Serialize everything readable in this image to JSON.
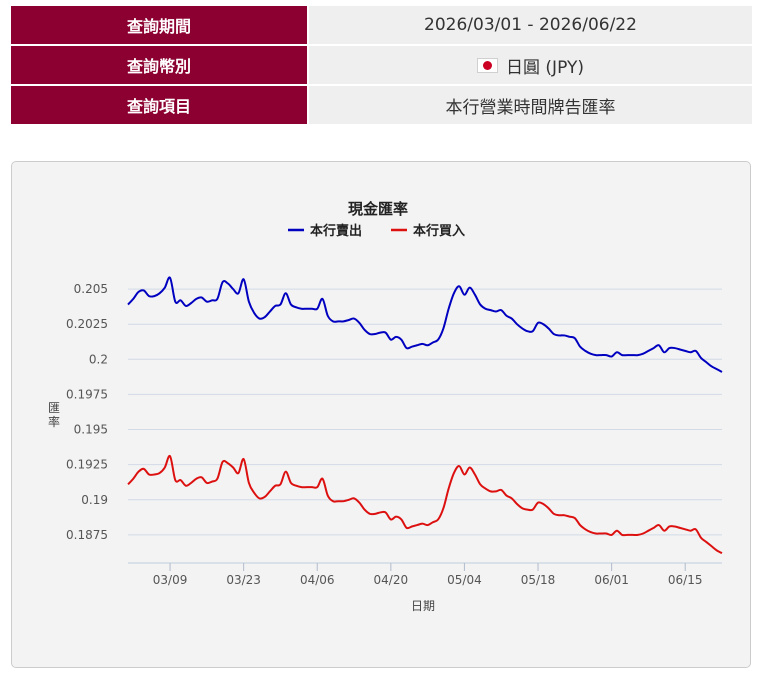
{
  "query": {
    "rows": [
      {
        "label": "查詢期間",
        "value": "2026/03/01 - 2026/06/22"
      },
      {
        "label": "查詢幣別",
        "value": "日圓 (JPY)",
        "icon": "japan-flag-icon"
      },
      {
        "label": "查詢項目",
        "value": "本行營業時間牌告匯率"
      }
    ]
  },
  "colors": {
    "header": "#8b0030",
    "sell": "#0000c0",
    "buy": "#dd1010"
  },
  "chart_data": {
    "type": "line",
    "title": "現金匯率",
    "xlabel": "日期",
    "ylabel": "匯率",
    "legend_position": "top-center",
    "ylim": [
      0.1855,
      0.2065
    ],
    "xlim": [
      "2026-03-01",
      "2026-06-22"
    ],
    "y_ticks": [
      0.1875,
      0.19,
      0.1925,
      0.195,
      0.1975,
      0.2,
      0.2025,
      0.205
    ],
    "y_tick_labels": [
      "0.1875",
      "0.19",
      "0.1925",
      "0.195",
      "0.1975",
      "0.2",
      "0.2025",
      "0.205"
    ],
    "x_ticks": [
      "2026-03-09",
      "2026-03-23",
      "2026-04-06",
      "2026-04-20",
      "2026-05-04",
      "2026-05-18",
      "2026-06-01",
      "2026-06-15"
    ],
    "x_tick_labels": [
      "03/09",
      "03/23",
      "04/06",
      "04/20",
      "05/04",
      "05/18",
      "06/01",
      "06/15"
    ],
    "grid": true,
    "series": [
      {
        "name": "本行賣出",
        "color": "#0000c0",
        "points": [
          [
            "2026-03-01",
            0.2039
          ],
          [
            "2026-03-02",
            0.2043
          ],
          [
            "2026-03-03",
            0.2048
          ],
          [
            "2026-03-04",
            0.2049
          ],
          [
            "2026-03-05",
            0.2045
          ],
          [
            "2026-03-06",
            0.2045
          ],
          [
            "2026-03-07",
            0.2047
          ],
          [
            "2026-03-08",
            0.2051
          ],
          [
            "2026-03-09",
            0.2058
          ],
          [
            "2026-03-10",
            0.2041
          ],
          [
            "2026-03-11",
            0.2042
          ],
          [
            "2026-03-12",
            0.2038
          ],
          [
            "2026-03-13",
            0.204
          ],
          [
            "2026-03-14",
            0.2043
          ],
          [
            "2026-03-15",
            0.2044
          ],
          [
            "2026-03-16",
            0.2041
          ],
          [
            "2026-03-17",
            0.2042
          ],
          [
            "2026-03-18",
            0.2043
          ],
          [
            "2026-03-19",
            0.2055
          ],
          [
            "2026-03-20",
            0.2054
          ],
          [
            "2026-03-21",
            0.205
          ],
          [
            "2026-03-22",
            0.2047
          ],
          [
            "2026-03-23",
            0.2057
          ],
          [
            "2026-03-24",
            0.2041
          ],
          [
            "2026-03-25",
            0.2033
          ],
          [
            "2026-03-26",
            0.2029
          ],
          [
            "2026-03-27",
            0.203
          ],
          [
            "2026-03-28",
            0.2034
          ],
          [
            "2026-03-29",
            0.2038
          ],
          [
            "2026-03-30",
            0.2039
          ],
          [
            "2026-03-31",
            0.2047
          ],
          [
            "2026-04-01",
            0.2039
          ],
          [
            "2026-04-02",
            0.2037
          ],
          [
            "2026-04-03",
            0.2036
          ],
          [
            "2026-04-04",
            0.2036
          ],
          [
            "2026-04-05",
            0.2036
          ],
          [
            "2026-04-06",
            0.2036
          ],
          [
            "2026-04-07",
            0.2043
          ],
          [
            "2026-04-08",
            0.2031
          ],
          [
            "2026-04-09",
            0.2027
          ],
          [
            "2026-04-10",
            0.2027
          ],
          [
            "2026-04-11",
            0.2027
          ],
          [
            "2026-04-12",
            0.2028
          ],
          [
            "2026-04-13",
            0.2029
          ],
          [
            "2026-04-14",
            0.2026
          ],
          [
            "2026-04-15",
            0.2021
          ],
          [
            "2026-04-16",
            0.2018
          ],
          [
            "2026-04-17",
            0.2018
          ],
          [
            "2026-04-18",
            0.2019
          ],
          [
            "2026-04-19",
            0.2019
          ],
          [
            "2026-04-20",
            0.2014
          ],
          [
            "2026-04-21",
            0.2016
          ],
          [
            "2026-04-22",
            0.2014
          ],
          [
            "2026-04-23",
            0.2008
          ],
          [
            "2026-04-24",
            0.2009
          ],
          [
            "2026-04-25",
            0.201
          ],
          [
            "2026-04-26",
            0.2011
          ],
          [
            "2026-04-27",
            0.201
          ],
          [
            "2026-04-28",
            0.2012
          ],
          [
            "2026-04-29",
            0.2014
          ],
          [
            "2026-04-30",
            0.2022
          ],
          [
            "2026-05-01",
            0.2036
          ],
          [
            "2026-05-02",
            0.2047
          ],
          [
            "2026-05-03",
            0.2052
          ],
          [
            "2026-05-04",
            0.2046
          ],
          [
            "2026-05-05",
            0.2051
          ],
          [
            "2026-05-06",
            0.2046
          ],
          [
            "2026-05-07",
            0.2039
          ],
          [
            "2026-05-08",
            0.2036
          ],
          [
            "2026-05-09",
            0.2035
          ],
          [
            "2026-05-10",
            0.2034
          ],
          [
            "2026-05-11",
            0.2035
          ],
          [
            "2026-05-12",
            0.2031
          ],
          [
            "2026-05-13",
            0.2029
          ],
          [
            "2026-05-14",
            0.2025
          ],
          [
            "2026-05-15",
            0.2022
          ],
          [
            "2026-05-16",
            0.202
          ],
          [
            "2026-05-17",
            0.202
          ],
          [
            "2026-05-18",
            0.2026
          ],
          [
            "2026-05-19",
            0.2025
          ],
          [
            "2026-05-20",
            0.2022
          ],
          [
            "2026-05-21",
            0.2018
          ],
          [
            "2026-05-22",
            0.2017
          ],
          [
            "2026-05-23",
            0.2017
          ],
          [
            "2026-05-24",
            0.2016
          ],
          [
            "2026-05-25",
            0.2015
          ],
          [
            "2026-05-26",
            0.2009
          ],
          [
            "2026-05-27",
            0.2006
          ],
          [
            "2026-05-28",
            0.2004
          ],
          [
            "2026-05-29",
            0.2003
          ],
          [
            "2026-05-30",
            0.2003
          ],
          [
            "2026-05-31",
            0.2003
          ],
          [
            "2026-06-01",
            0.2002
          ],
          [
            "2026-06-02",
            0.2005
          ],
          [
            "2026-06-03",
            0.2003
          ],
          [
            "2026-06-04",
            0.2003
          ],
          [
            "2026-06-05",
            0.2003
          ],
          [
            "2026-06-06",
            0.2003
          ],
          [
            "2026-06-07",
            0.2004
          ],
          [
            "2026-06-08",
            0.2006
          ],
          [
            "2026-06-09",
            0.2008
          ],
          [
            "2026-06-10",
            0.201
          ],
          [
            "2026-06-11",
            0.2005
          ],
          [
            "2026-06-12",
            0.2008
          ],
          [
            "2026-06-13",
            0.2008
          ],
          [
            "2026-06-14",
            0.2007
          ],
          [
            "2026-06-15",
            0.2006
          ],
          [
            "2026-06-16",
            0.2005
          ],
          [
            "2026-06-17",
            0.2006
          ],
          [
            "2026-06-18",
            0.2001
          ],
          [
            "2026-06-19",
            0.1998
          ],
          [
            "2026-06-20",
            0.1995
          ],
          [
            "2026-06-21",
            0.1993
          ],
          [
            "2026-06-22",
            0.1991
          ]
        ]
      },
      {
        "name": "本行買入",
        "color": "#dd1010",
        "points": [
          [
            "2026-03-01",
            0.1911
          ],
          [
            "2026-03-02",
            0.1915
          ],
          [
            "2026-03-03",
            0.192
          ],
          [
            "2026-03-04",
            0.1922
          ],
          [
            "2026-03-05",
            0.1918
          ],
          [
            "2026-03-06",
            0.1918
          ],
          [
            "2026-03-07",
            0.1919
          ],
          [
            "2026-03-08",
            0.1923
          ],
          [
            "2026-03-09",
            0.1931
          ],
          [
            "2026-03-10",
            0.1914
          ],
          [
            "2026-03-11",
            0.1914
          ],
          [
            "2026-03-12",
            0.191
          ],
          [
            "2026-03-13",
            0.1912
          ],
          [
            "2026-03-14",
            0.1915
          ],
          [
            "2026-03-15",
            0.1916
          ],
          [
            "2026-03-16",
            0.1912
          ],
          [
            "2026-03-17",
            0.1913
          ],
          [
            "2026-03-18",
            0.1915
          ],
          [
            "2026-03-19",
            0.1927
          ],
          [
            "2026-03-20",
            0.1926
          ],
          [
            "2026-03-21",
            0.1923
          ],
          [
            "2026-03-22",
            0.1919
          ],
          [
            "2026-03-23",
            0.1929
          ],
          [
            "2026-03-24",
            0.1912
          ],
          [
            "2026-03-25",
            0.1905
          ],
          [
            "2026-03-26",
            0.1901
          ],
          [
            "2026-03-27",
            0.1902
          ],
          [
            "2026-03-28",
            0.1906
          ],
          [
            "2026-03-29",
            0.191
          ],
          [
            "2026-03-30",
            0.1911
          ],
          [
            "2026-03-31",
            0.192
          ],
          [
            "2026-04-01",
            0.1912
          ],
          [
            "2026-04-02",
            0.191
          ],
          [
            "2026-04-03",
            0.1909
          ],
          [
            "2026-04-04",
            0.1909
          ],
          [
            "2026-04-05",
            0.1909
          ],
          [
            "2026-04-06",
            0.1909
          ],
          [
            "2026-04-07",
            0.1915
          ],
          [
            "2026-04-08",
            0.1903
          ],
          [
            "2026-04-09",
            0.1899
          ],
          [
            "2026-04-10",
            0.1899
          ],
          [
            "2026-04-11",
            0.1899
          ],
          [
            "2026-04-12",
            0.19
          ],
          [
            "2026-04-13",
            0.1901
          ],
          [
            "2026-04-14",
            0.1898
          ],
          [
            "2026-04-15",
            0.1893
          ],
          [
            "2026-04-16",
            0.189
          ],
          [
            "2026-04-17",
            0.189
          ],
          [
            "2026-04-18",
            0.1891
          ],
          [
            "2026-04-19",
            0.1891
          ],
          [
            "2026-04-20",
            0.1886
          ],
          [
            "2026-04-21",
            0.1888
          ],
          [
            "2026-04-22",
            0.1886
          ],
          [
            "2026-04-23",
            0.188
          ],
          [
            "2026-04-24",
            0.1881
          ],
          [
            "2026-04-25",
            0.1882
          ],
          [
            "2026-04-26",
            0.1883
          ],
          [
            "2026-04-27",
            0.1882
          ],
          [
            "2026-04-28",
            0.1884
          ],
          [
            "2026-04-29",
            0.1886
          ],
          [
            "2026-04-30",
            0.1894
          ],
          [
            "2026-05-01",
            0.1908
          ],
          [
            "2026-05-02",
            0.1919
          ],
          [
            "2026-05-03",
            0.1924
          ],
          [
            "2026-05-04",
            0.1918
          ],
          [
            "2026-05-05",
            0.1923
          ],
          [
            "2026-05-06",
            0.1918
          ],
          [
            "2026-05-07",
            0.1911
          ],
          [
            "2026-05-08",
            0.1908
          ],
          [
            "2026-05-09",
            0.1906
          ],
          [
            "2026-05-10",
            0.1906
          ],
          [
            "2026-05-11",
            0.1907
          ],
          [
            "2026-05-12",
            0.1903
          ],
          [
            "2026-05-13",
            0.1901
          ],
          [
            "2026-05-14",
            0.1897
          ],
          [
            "2026-05-15",
            0.1894
          ],
          [
            "2026-05-16",
            0.1893
          ],
          [
            "2026-05-17",
            0.1893
          ],
          [
            "2026-05-18",
            0.1898
          ],
          [
            "2026-05-19",
            0.1897
          ],
          [
            "2026-05-20",
            0.1894
          ],
          [
            "2026-05-21",
            0.189
          ],
          [
            "2026-05-22",
            0.1889
          ],
          [
            "2026-05-23",
            0.1889
          ],
          [
            "2026-05-24",
            0.1888
          ],
          [
            "2026-05-25",
            0.1887
          ],
          [
            "2026-05-26",
            0.1882
          ],
          [
            "2026-05-27",
            0.1879
          ],
          [
            "2026-05-28",
            0.1877
          ],
          [
            "2026-05-29",
            0.1876
          ],
          [
            "2026-05-30",
            0.1876
          ],
          [
            "2026-05-31",
            0.1876
          ],
          [
            "2026-06-01",
            0.1875
          ],
          [
            "2026-06-02",
            0.1878
          ],
          [
            "2026-06-03",
            0.1875
          ],
          [
            "2026-06-04",
            0.1875
          ],
          [
            "2026-06-05",
            0.1875
          ],
          [
            "2026-06-06",
            0.1875
          ],
          [
            "2026-06-07",
            0.1876
          ],
          [
            "2026-06-08",
            0.1878
          ],
          [
            "2026-06-09",
            0.188
          ],
          [
            "2026-06-10",
            0.1882
          ],
          [
            "2026-06-11",
            0.1878
          ],
          [
            "2026-06-12",
            0.1881
          ],
          [
            "2026-06-13",
            0.1881
          ],
          [
            "2026-06-14",
            0.188
          ],
          [
            "2026-06-15",
            0.1879
          ],
          [
            "2026-06-16",
            0.1878
          ],
          [
            "2026-06-17",
            0.1879
          ],
          [
            "2026-06-18",
            0.1873
          ],
          [
            "2026-06-19",
            0.187
          ],
          [
            "2026-06-20",
            0.1867
          ],
          [
            "2026-06-21",
            0.1864
          ],
          [
            "2026-06-22",
            0.1862
          ]
        ]
      }
    ]
  }
}
